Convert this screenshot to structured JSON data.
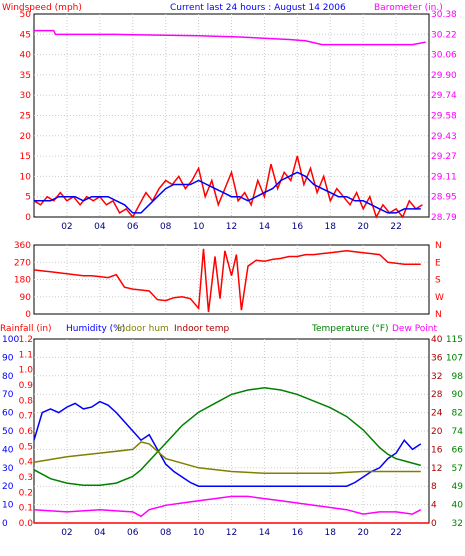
{
  "chart_data": [
    {
      "type": "line",
      "title": "Current last 24 hours : August 14 2006",
      "left_axis_label": "Windspeed (mph)",
      "right_axis_label": "Barometer (in.)",
      "x_ticks": [
        "02",
        "04",
        "06",
        "08",
        "10",
        "12",
        "14",
        "16",
        "18",
        "20",
        "22"
      ],
      "xlim": [
        0,
        24
      ],
      "grid": true,
      "left_ylim": [
        0,
        50
      ],
      "left_ticks": [
        "0",
        "5",
        "10",
        "15",
        "20",
        "25",
        "30",
        "35",
        "40",
        "45",
        "50"
      ],
      "right_ylim": [
        28.79,
        30.38
      ],
      "right_ticks": [
        "28.79",
        "28.95",
        "29.11",
        "29.27",
        "29.43",
        "29.58",
        "29.74",
        "29.90",
        "30.06",
        "30.22",
        "30.38"
      ],
      "series": [
        {
          "color": "#ff00ff",
          "axis": "right",
          "x": [
            0,
            1.2,
            1.3,
            5,
            10,
            12.5,
            15.5,
            16.5,
            17.5,
            19,
            22,
            23,
            23.8
          ],
          "y": [
            30.25,
            30.25,
            30.22,
            30.22,
            30.21,
            30.2,
            30.18,
            30.17,
            30.14,
            30.14,
            30.14,
            30.14,
            30.16
          ]
        },
        {
          "color": "#ff0000",
          "axis": "left",
          "x": [
            0,
            0.4,
            0.8,
            1.2,
            1.6,
            2,
            2.4,
            2.8,
            3.2,
            3.6,
            4,
            4.4,
            4.8,
            5.2,
            5.6,
            6,
            6.4,
            6.8,
            7.2,
            7.6,
            8,
            8.4,
            8.8,
            9.2,
            9.6,
            10,
            10.4,
            10.8,
            11.2,
            11.6,
            12,
            12.4,
            12.8,
            13.2,
            13.6,
            14,
            14.4,
            14.8,
            15.2,
            15.6,
            16,
            16.4,
            16.8,
            17.2,
            17.6,
            18,
            18.4,
            18.8,
            19.2,
            19.6,
            20,
            20.4,
            20.8,
            21.2,
            21.6,
            22,
            22.4,
            22.8,
            23.2,
            23.6
          ],
          "y": [
            4,
            3,
            5,
            4,
            6,
            4,
            5,
            3,
            5,
            4,
            5,
            3,
            4,
            1,
            2,
            0,
            3,
            6,
            4,
            7,
            9,
            8,
            10,
            7,
            9,
            12,
            5,
            9,
            3,
            7,
            11,
            4,
            6,
            3,
            9,
            5,
            13,
            7,
            11,
            9,
            15,
            8,
            12,
            6,
            10,
            4,
            7,
            5,
            3,
            6,
            2,
            5,
            0,
            3,
            1,
            2,
            0,
            4,
            2,
            3
          ]
        },
        {
          "color": "#0000ff",
          "axis": "left",
          "x": [
            0,
            0.5,
            1,
            1.5,
            2,
            2.5,
            3,
            3.5,
            4,
            4.5,
            5,
            5.5,
            6,
            6.5,
            7,
            7.5,
            8,
            8.5,
            9,
            9.5,
            10,
            10.5,
            11,
            11.5,
            12,
            12.5,
            13,
            13.5,
            14,
            14.5,
            15,
            15.5,
            16,
            16.5,
            17,
            17.5,
            18,
            18.5,
            19,
            19.5,
            20,
            20.5,
            21,
            21.5,
            22,
            22.5,
            23,
            23.5
          ],
          "y": [
            4,
            4,
            4,
            5,
            5,
            5,
            4,
            5,
            5,
            5,
            4,
            3,
            1,
            1,
            3,
            5,
            7,
            8,
            8,
            8,
            9,
            8,
            7,
            6,
            5,
            5,
            4,
            5,
            6,
            7,
            9,
            10,
            11,
            10,
            8,
            7,
            6,
            5,
            5,
            4,
            4,
            3,
            2,
            1,
            1,
            2,
            2,
            2
          ]
        }
      ]
    },
    {
      "type": "scatter",
      "right_ticks": [
        "N",
        "W",
        "S",
        "E",
        "N"
      ],
      "ylim": [
        0,
        360
      ],
      "left_ticks": [
        "0",
        "90",
        "180",
        "270",
        "360"
      ],
      "xlim": [
        0,
        24
      ],
      "grid": true,
      "series": [
        {
          "color": "#ff0000",
          "x": [
            0,
            0.5,
            1,
            1.5,
            2,
            2.5,
            3,
            3.5,
            4,
            4.5,
            5,
            5.5,
            6,
            6.5,
            7,
            7.5,
            8,
            8.5,
            9,
            9.5,
            10,
            10.3,
            10.6,
            11,
            11.3,
            11.6,
            12,
            12.3,
            12.6,
            13,
            13.5,
            14,
            14.5,
            15,
            15.5,
            16,
            16.5,
            17,
            17.5,
            18,
            18.5,
            19,
            19.5,
            20,
            20.5,
            21,
            21.5,
            22,
            22.5,
            23,
            23.5
          ],
          "y": [
            230,
            225,
            220,
            215,
            210,
            205,
            200,
            200,
            195,
            190,
            205,
            140,
            130,
            125,
            120,
            75,
            70,
            85,
            90,
            80,
            30,
            340,
            10,
            300,
            80,
            330,
            200,
            310,
            20,
            250,
            280,
            275,
            285,
            290,
            300,
            300,
            310,
            310,
            315,
            320,
            325,
            330,
            325,
            320,
            315,
            310,
            270,
            265,
            260,
            260,
            260
          ]
        }
      ]
    },
    {
      "type": "line",
      "title": "",
      "labels": [
        "Rainfall (in)",
        "Humidity (%)",
        "Indoor hum",
        "Indoor temp",
        "Temperature (°F)",
        "Dew Point"
      ],
      "xlim": [
        0,
        24
      ],
      "x_ticks": [
        "02",
        "04",
        "06",
        "08",
        "10",
        "12",
        "14",
        "16",
        "18",
        "20",
        "22"
      ],
      "grid": true,
      "axes": {
        "rainfall_ticks": [
          "0.0",
          "0.1",
          "0.2",
          "0.3",
          "0.4",
          "0.5",
          "0.6",
          "0.7",
          "0.8",
          "0.9",
          "1.0",
          "1.1",
          "1.2"
        ],
        "humidity_ticks": [
          "0",
          "10",
          "20",
          "30",
          "40",
          "50",
          "60",
          "70",
          "80",
          "90",
          "100"
        ],
        "celsius_ticks": [
          "0",
          "4",
          "8",
          "12",
          "16",
          "20",
          "24",
          "28",
          "32",
          "36",
          "40"
        ],
        "fahrenheit_ticks": [
          "32",
          "40",
          "49",
          "57",
          "66",
          "74",
          "82",
          "90",
          "98",
          "107",
          "115"
        ],
        "temperature_ylim": [
          32,
          115
        ],
        "humidity_ylim": [
          0,
          100
        ]
      },
      "series": [
        {
          "name": "Humidity (%)",
          "color": "#0000ff",
          "x": [
            0,
            0.5,
            1,
            1.5,
            2,
            2.5,
            3,
            3.5,
            4,
            4.5,
            5,
            5.5,
            6,
            6.5,
            7,
            7.5,
            8,
            8.5,
            9,
            9.5,
            10,
            11,
            12,
            13,
            14,
            15,
            16,
            17,
            18,
            19,
            19.5,
            20,
            20.5,
            21,
            21.5,
            22,
            22.5,
            23,
            23.5
          ],
          "y": [
            45,
            60,
            62,
            60,
            63,
            65,
            62,
            63,
            66,
            64,
            60,
            55,
            50,
            45,
            48,
            40,
            32,
            28,
            25,
            22,
            20,
            20,
            20,
            20,
            20,
            20,
            20,
            20,
            20,
            20,
            22,
            25,
            28,
            30,
            35,
            38,
            45,
            40,
            43
          ]
        },
        {
          "name": "Temperature (°F)",
          "color": "#008000",
          "x": [
            0,
            1,
            2,
            3,
            4,
            5,
            6,
            6.5,
            7,
            8,
            9,
            10,
            11,
            12,
            13,
            14,
            15,
            16,
            17,
            18,
            19,
            20,
            20.5,
            21,
            21.5,
            22,
            22.5,
            23,
            23.5
          ],
          "y": [
            56,
            52,
            50,
            49,
            49,
            50,
            53,
            56,
            60,
            68,
            76,
            82,
            86,
            90,
            92,
            93,
            92,
            90,
            87,
            84,
            80,
            74,
            70,
            66,
            63,
            61,
            60,
            59,
            58
          ]
        },
        {
          "name": "Indoor hum",
          "color": "#808000",
          "x": [
            0,
            2,
            4,
            6,
            6.5,
            7,
            8,
            10,
            12,
            14,
            16,
            18,
            20,
            22,
            23.5
          ],
          "y": [
            33,
            36,
            38,
            40,
            44,
            43,
            35,
            30,
            28,
            27,
            27,
            27,
            28,
            28,
            28
          ]
        },
        {
          "name": "Dew Point",
          "color": "#ff00ff",
          "x": [
            0,
            2,
            4,
            6,
            6.5,
            7,
            8,
            9,
            10,
            11,
            12,
            13,
            14,
            15,
            16,
            17,
            18,
            19,
            20,
            21,
            22,
            23,
            23.5
          ],
          "y": [
            38,
            37,
            38,
            37,
            35,
            38,
            40,
            41,
            42,
            43,
            44,
            44,
            43,
            42,
            41,
            40,
            39,
            38,
            36,
            37,
            37,
            36,
            38
          ]
        },
        {
          "name": "Rainfall (in)",
          "color": "#ff0000",
          "x": [
            0,
            24
          ],
          "y": [
            0,
            0
          ]
        }
      ]
    }
  ]
}
